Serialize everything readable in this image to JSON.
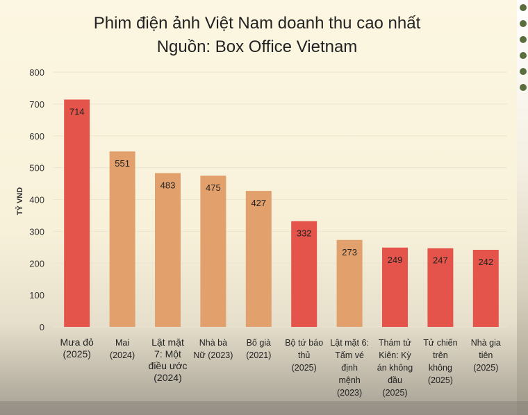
{
  "title_line1": "Phim điện ảnh Việt Nam doanh thu cao nhất",
  "title_line2": "Nguồn: Box Office Vietnam",
  "colors": {
    "red": "#e5544a",
    "orange": "#e2a06c",
    "dot": "#5a6d3c"
  },
  "chart_data": {
    "type": "bar",
    "ylabel": "TỶ VND",
    "ylim": [
      0,
      800
    ],
    "yticks": [
      0,
      100,
      200,
      300,
      400,
      500,
      600,
      700,
      800
    ],
    "grid": true,
    "categories": [
      [
        "Mưa đỏ",
        "(2025)"
      ],
      [
        "Mai",
        "(2024)"
      ],
      [
        "Lật mặt",
        "7: Một",
        "điều ước",
        "(2024)"
      ],
      [
        "Nhà bà",
        "Nữ (2023)"
      ],
      [
        "Bố già",
        "(2021)"
      ],
      [
        "Bộ tứ báo",
        "thủ",
        "(2025)"
      ],
      [
        "Lật mặt 6:",
        "Tấm vé",
        "định",
        "mệnh",
        "(2023)"
      ],
      [
        "Thám tử",
        "Kiên: Kỳ",
        "án không",
        "đầu",
        "(2025)"
      ],
      [
        "Tử chiến",
        "trên",
        "không",
        "(2025)"
      ],
      [
        "Nhà gia",
        "tiên",
        "(2025)"
      ]
    ],
    "values": [
      714,
      551,
      483,
      475,
      427,
      332,
      273,
      249,
      247,
      242
    ],
    "bar_colors": [
      "red",
      "orange",
      "orange",
      "orange",
      "orange",
      "red",
      "orange",
      "red",
      "red",
      "red"
    ]
  }
}
